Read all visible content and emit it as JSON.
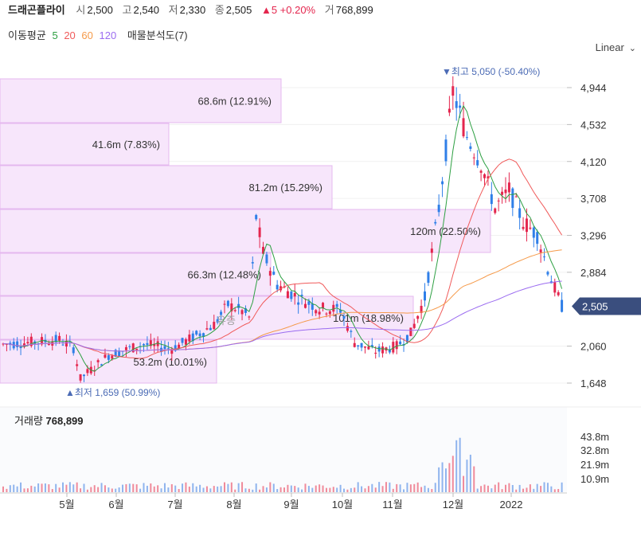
{
  "header": {
    "name": "드래곤플라이",
    "open_label": "시",
    "open": "2,500",
    "high_label": "고",
    "high": "2,540",
    "low_label": "저",
    "low": "2,330",
    "close_label": "종",
    "close": "2,505",
    "change": "▲5 +0.20%",
    "volume_label": "거",
    "volume": "768,899"
  },
  "ma_legend": {
    "label": "이동평균",
    "periods": [
      "5",
      "20",
      "60",
      "120"
    ],
    "colors": [
      "#2ea043",
      "#f05a5a",
      "#f59a4a",
      "#9b6cf0"
    ],
    "profile_label": "매물분석도(7)"
  },
  "scale_toggle": "Linear",
  "chart_data": {
    "type": "candlestick",
    "y_axis": {
      "ticks": [
        "4,944",
        "4,532",
        "4,120",
        "3,708",
        "3,296",
        "2,884",
        "2,060",
        "1,648"
      ],
      "range": [
        1500,
        5100
      ]
    },
    "x_axis": {
      "ticks": [
        "5월",
        "6월",
        "7월",
        "8월",
        "9월",
        "10월",
        "11월",
        "12월",
        "2022"
      ]
    },
    "last_price_label": "2,505",
    "max_label": "▼최고 5,050 (-50.40%)",
    "min_label": "▲최저 1,659 (50.99%)",
    "annotation": "유증",
    "volume_profile": [
      {
        "label": "68.6m (12.91%)",
        "price_low": 4650,
        "price_high": 4960
      },
      {
        "label": "41.6m (7.83%)",
        "price_low": 4150,
        "price_high": 4650
      },
      {
        "label": "81.2m (15.29%)",
        "price_low": 3650,
        "price_high": 4150
      },
      {
        "label": "120m (22.50%)",
        "price_low": 3150,
        "price_high": 3650
      },
      {
        "label": "66.3m (12.48%)",
        "price_low": 2650,
        "price_high": 3150
      },
      {
        "label": "101m (18.98%)",
        "price_low": 2150,
        "price_high": 2650
      },
      {
        "label": "53.2m (10.01%)",
        "price_low": 1650,
        "price_high": 2150
      }
    ],
    "volume": {
      "title": "거래량",
      "value": "768,899",
      "ticks": [
        "43.8m",
        "32.8m",
        "21.9m",
        "10.9m"
      ]
    }
  }
}
